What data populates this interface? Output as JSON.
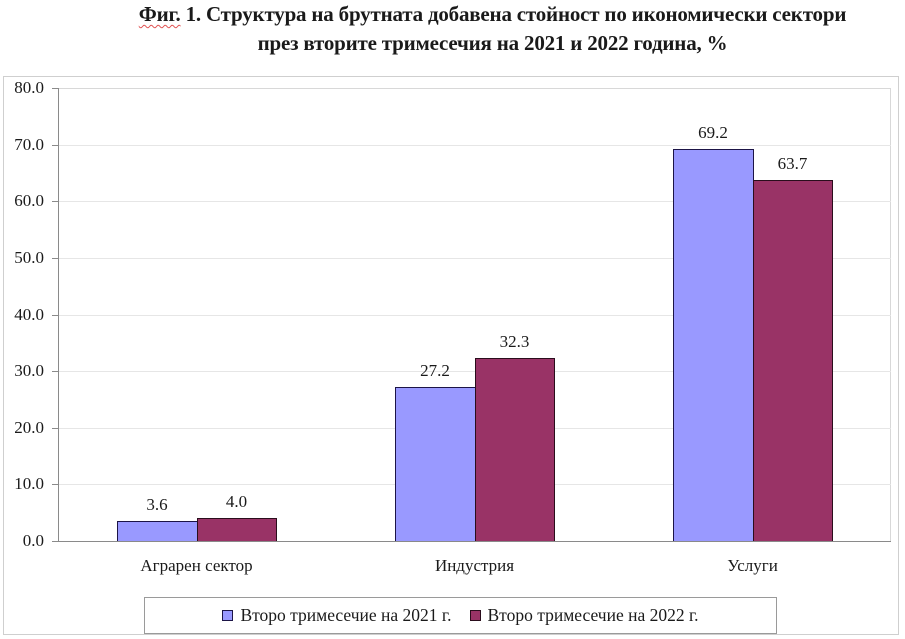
{
  "title": {
    "prefix": "Фиг.",
    "line1_rest": " 1. Структура на брутната добавена стойност по икономически сектори",
    "line2": "през вторите тримесечия на 2021 и 2022 година, %"
  },
  "colors": {
    "series_2021": "#9999ff",
    "series_2022": "#993366",
    "bar_border": "#1c1446",
    "axis": "#8a8a8a",
    "grid": "#e6e6e6"
  },
  "y_ticks": [
    "0.0",
    "10.0",
    "20.0",
    "30.0",
    "40.0",
    "50.0",
    "60.0",
    "70.0",
    "80.0"
  ],
  "categories": [
    {
      "label": "Аграрен сектор",
      "v2021": "3.6",
      "v2022": "4.0"
    },
    {
      "label": "Индустрия",
      "v2021": "27.2",
      "v2022": "32.3"
    },
    {
      "label": "Услуги",
      "v2021": "69.2",
      "v2022": "63.7"
    }
  ],
  "legend": [
    {
      "label": "Второ тримесечие на 2021 г.",
      "color": "#9999ff"
    },
    {
      "label": "Второ тримесечие на 2022 г.",
      "color": "#993366"
    }
  ],
  "chart_data": {
    "type": "bar",
    "title": "Фиг. 1. Структура на брутната добавена стойност по икономически сектори през вторите тримесечия на 2021 и 2022 година, %",
    "categories": [
      "Аграрен сектор",
      "Индустрия",
      "Услуги"
    ],
    "series": [
      {
        "name": "Второ тримесечие на 2021 г.",
        "color": "#9999ff",
        "values": [
          3.6,
          27.2,
          69.2
        ]
      },
      {
        "name": "Второ тримесечие на 2022 г.",
        "color": "#993366",
        "values": [
          4.0,
          32.3,
          63.7
        ]
      }
    ],
    "xlabel": "",
    "ylabel": "",
    "ylim": [
      0,
      80
    ],
    "y_tick_step": 10,
    "grid": true,
    "data_labels": true,
    "legend_position": "bottom"
  }
}
